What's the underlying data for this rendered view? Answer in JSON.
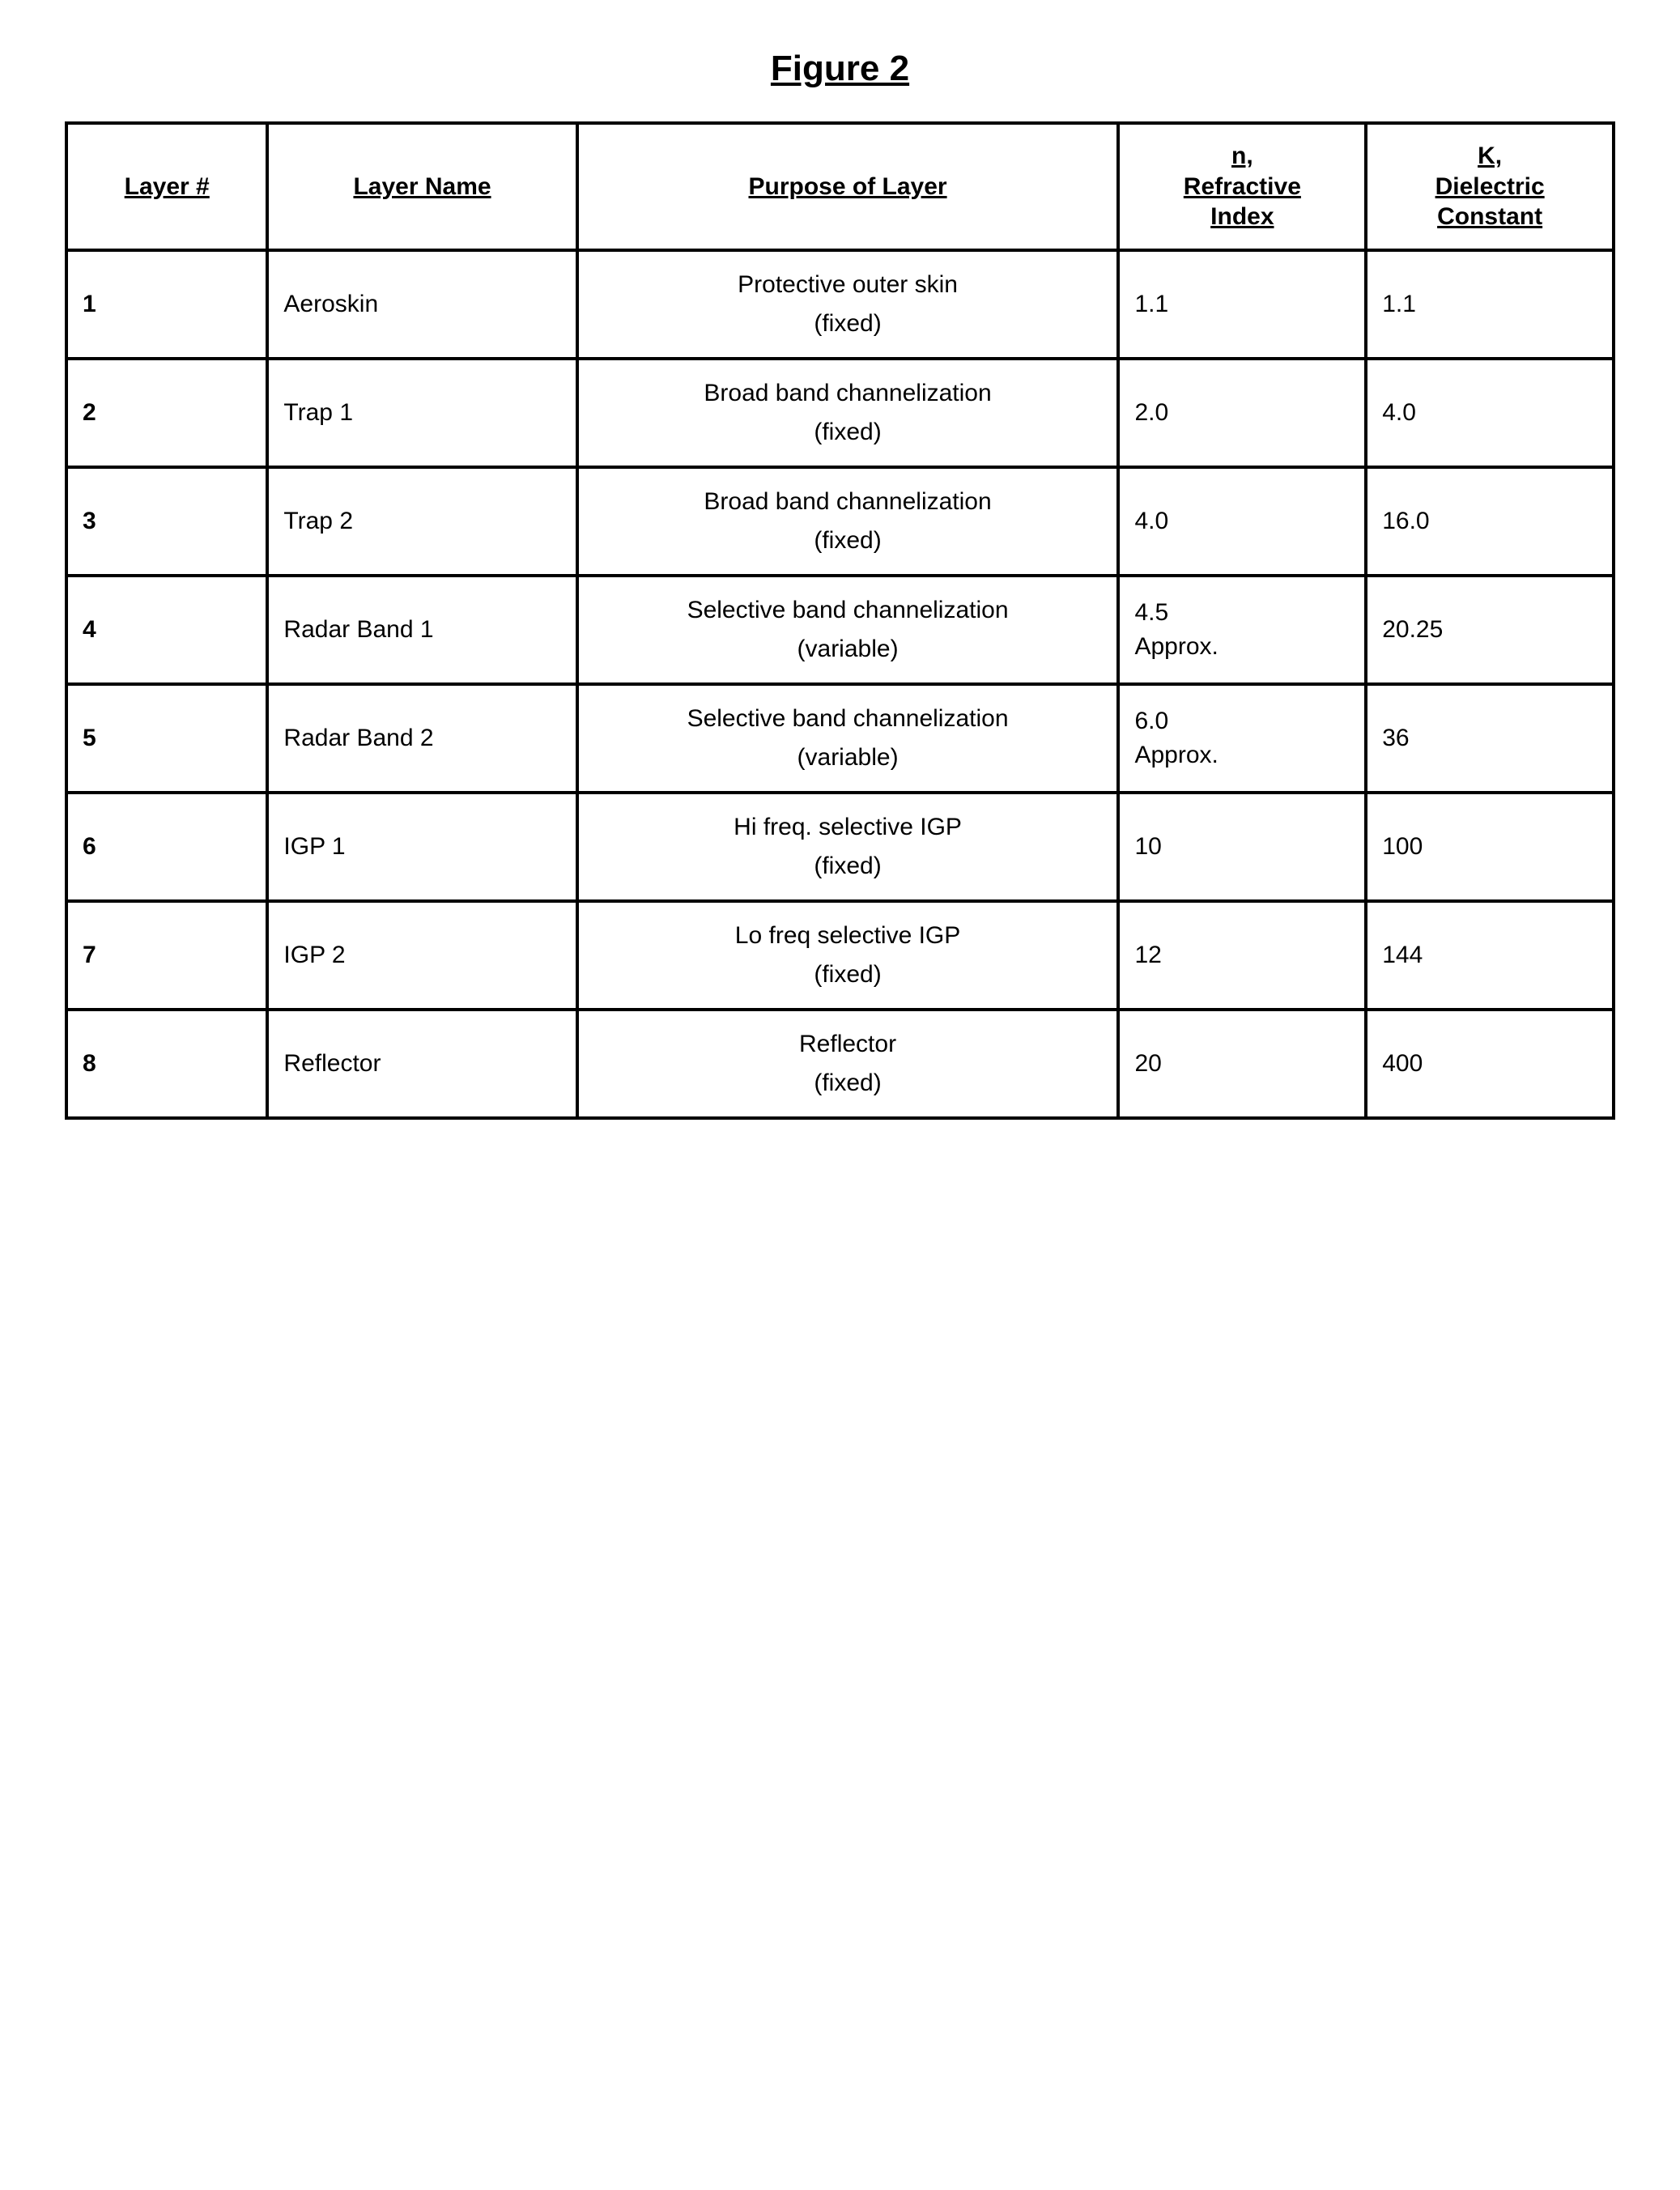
{
  "figure_title": "Figure 2",
  "headers": {
    "layer_num": "Layer #",
    "layer_name": "Layer Name",
    "purpose": "Purpose of Layer",
    "n": "n,\nRefractive\nIndex",
    "k": "K,\nDielectric\nConstant"
  },
  "rows": [
    {
      "num": "1",
      "name": "Aeroskin",
      "purpose": "Protective outer skin",
      "purpose_sub": "(fixed)",
      "n": "1.1",
      "k": "1.1"
    },
    {
      "num": "2",
      "name": "Trap 1",
      "purpose": "Broad band channelization",
      "purpose_sub": "(fixed)",
      "n": "2.0",
      "k": "4.0"
    },
    {
      "num": "3",
      "name": "Trap 2",
      "purpose": "Broad band channelization",
      "purpose_sub": "(fixed)",
      "n": "4.0",
      "k": "16.0"
    },
    {
      "num": "4",
      "name": "Radar Band 1",
      "purpose": "Selective band channelization",
      "purpose_sub": "(variable)",
      "n": "4.5\nApprox.",
      "k": "20.25"
    },
    {
      "num": "5",
      "name": "Radar Band 2",
      "purpose": "Selective band channelization",
      "purpose_sub": "(variable)",
      "n": "6.0\nApprox.",
      "k": "36"
    },
    {
      "num": "6",
      "name": "IGP 1",
      "purpose": "Hi freq. selective IGP",
      "purpose_sub": "(fixed)",
      "n": "10",
      "k": "100"
    },
    {
      "num": "7",
      "name": "IGP 2",
      "purpose": "Lo freq selective IGP",
      "purpose_sub": "(fixed)",
      "n": "12",
      "k": "144"
    },
    {
      "num": "8",
      "name": "Reflector",
      "purpose": "Reflector",
      "purpose_sub": "(fixed)",
      "n": "20",
      "k": "400"
    }
  ]
}
